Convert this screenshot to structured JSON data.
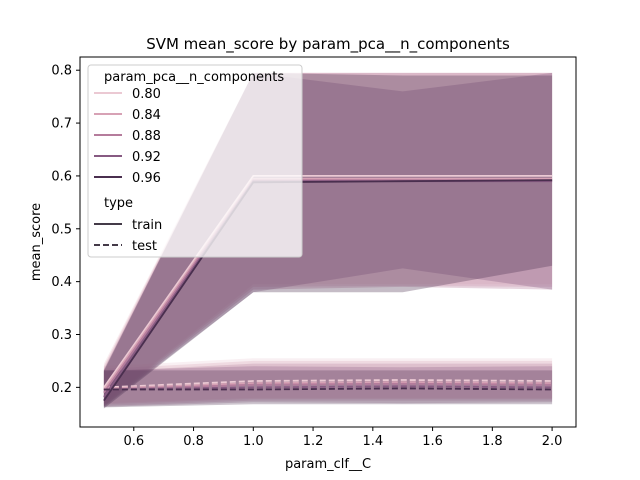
{
  "chart_data": {
    "type": "line",
    "title": "SVM mean_score by param_pca__n_components",
    "xlabel": "param_clf__C",
    "ylabel": "mean_score",
    "xlim": [
      0.42,
      2.08
    ],
    "ylim": [
      0.125,
      0.825
    ],
    "xticks": [
      "0.6",
      "0.8",
      "1.0",
      "1.2",
      "1.4",
      "1.6",
      "1.8",
      "2.0"
    ],
    "yticks": [
      "0.2",
      "0.3",
      "0.4",
      "0.5",
      "0.6",
      "0.7",
      "0.8"
    ],
    "x": [
      0.5,
      1.0,
      1.5,
      2.0
    ],
    "legend": {
      "placement": "top-left",
      "hue_title": "param_pca__n_components",
      "style_title": "type",
      "style_entries": [
        {
          "label": "train",
          "dash": "solid"
        },
        {
          "label": "test",
          "dash": "dashed"
        }
      ]
    },
    "series": [
      {
        "name": "0.80",
        "color": "#ebc9d3",
        "train": {
          "mean": [
            0.2,
            0.6,
            0.6,
            0.6
          ],
          "lo": [
            0.17,
            0.395,
            0.395,
            0.395
          ],
          "hi": [
            0.245,
            0.795,
            0.795,
            0.795
          ]
        },
        "test": {
          "mean": [
            0.2,
            0.212,
            0.214,
            0.212
          ],
          "lo": [
            0.17,
            0.18,
            0.18,
            0.18
          ],
          "hi": [
            0.24,
            0.255,
            0.255,
            0.255
          ]
        }
      },
      {
        "name": "0.84",
        "color": "#d7a2b5",
        "train": {
          "mean": [
            0.195,
            0.595,
            0.595,
            0.595
          ],
          "lo": [
            0.168,
            0.39,
            0.392,
            0.39
          ],
          "hi": [
            0.24,
            0.795,
            0.795,
            0.795
          ]
        },
        "test": {
          "mean": [
            0.198,
            0.208,
            0.21,
            0.208
          ],
          "lo": [
            0.168,
            0.178,
            0.178,
            0.178
          ],
          "hi": [
            0.235,
            0.25,
            0.25,
            0.25
          ]
        }
      },
      {
        "name": "0.88",
        "color": "#b57c9c",
        "train": {
          "mean": [
            0.19,
            0.592,
            0.592,
            0.592
          ],
          "lo": [
            0.165,
            0.385,
            0.39,
            0.385
          ],
          "hi": [
            0.235,
            0.795,
            0.795,
            0.795
          ]
        },
        "test": {
          "mean": [
            0.196,
            0.205,
            0.207,
            0.205
          ],
          "lo": [
            0.165,
            0.175,
            0.175,
            0.175
          ],
          "hi": [
            0.23,
            0.245,
            0.245,
            0.245
          ]
        }
      },
      {
        "name": "0.92",
        "color": "#875a82",
        "train": {
          "mean": [
            0.182,
            0.59,
            0.59,
            0.59
          ],
          "lo": [
            0.163,
            0.38,
            0.425,
            0.385
          ],
          "hi": [
            0.23,
            0.795,
            0.76,
            0.795
          ]
        },
        "test": {
          "mean": [
            0.196,
            0.2,
            0.202,
            0.2
          ],
          "lo": [
            0.163,
            0.172,
            0.17,
            0.172
          ],
          "hi": [
            0.232,
            0.24,
            0.238,
            0.24
          ]
        }
      },
      {
        "name": "0.96",
        "color": "#4a2f4f",
        "train": {
          "mean": [
            0.175,
            0.588,
            0.59,
            0.592
          ],
          "lo": [
            0.16,
            0.38,
            0.38,
            0.43
          ],
          "hi": [
            0.232,
            0.795,
            0.79,
            0.79
          ]
        },
        "test": {
          "mean": [
            0.196,
            0.196,
            0.198,
            0.196
          ],
          "lo": [
            0.162,
            0.168,
            0.168,
            0.168
          ],
          "hi": [
            0.232,
            0.232,
            0.232,
            0.232
          ]
        }
      }
    ]
  }
}
